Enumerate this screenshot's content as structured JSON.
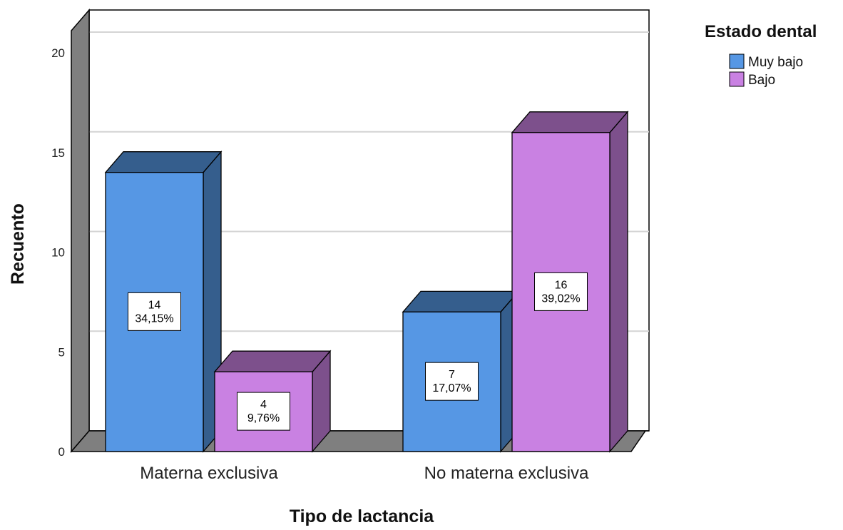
{
  "chart_data": {
    "type": "bar",
    "categories": [
      "Materna exclusiva",
      "No materna exclusiva"
    ],
    "series": [
      {
        "name": "Muy bajo",
        "color": "#5697e4",
        "values": [
          14,
          7
        ],
        "labels": [
          "14",
          "7"
        ],
        "percents": [
          "34,15%",
          "17,07%"
        ]
      },
      {
        "name": "Bajo",
        "color": "#c981e2",
        "values": [
          4,
          16
        ],
        "labels": [
          "4",
          "16"
        ],
        "percents": [
          "9,76%",
          "39,02%"
        ]
      }
    ],
    "xlabel": "Tipo de lactancia",
    "ylabel": "Recuento",
    "ylim": [
      0,
      22
    ],
    "yticks": [
      "0",
      "5",
      "10",
      "15",
      "20"
    ],
    "legend_title": "Estado dental",
    "legend_position": "top-right",
    "grid": true,
    "style": "3d"
  }
}
